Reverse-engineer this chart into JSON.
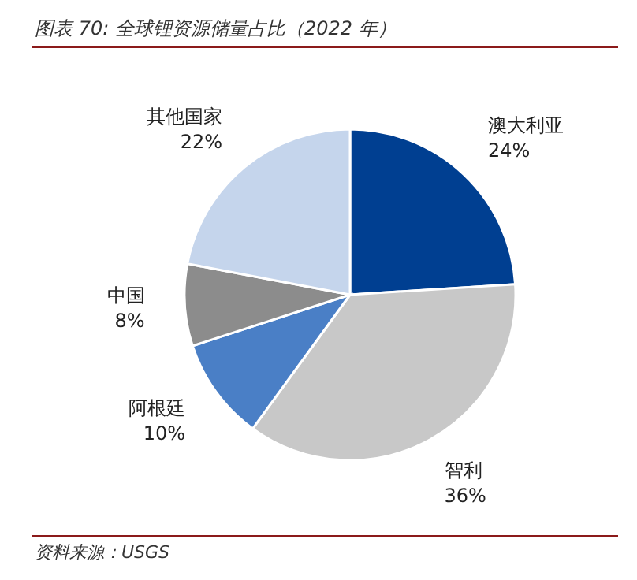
{
  "chart_data": {
    "type": "pie",
    "title": "图表 70: 全球锂资源储量占比（2022 年）",
    "categories": [
      "澳大利亚",
      "智利",
      "阿根廷",
      "中国",
      "其他国家"
    ],
    "values": [
      24,
      36,
      10,
      8,
      22
    ],
    "value_labels": [
      "24%",
      "36%",
      "10%",
      "8%",
      "22%"
    ],
    "colors": [
      "#003f91",
      "#c8c8c8",
      "#4a7fc6",
      "#8c8c8c",
      "#c5d5ec"
    ],
    "annotations": [
      "资料来源：USGS"
    ]
  }
}
